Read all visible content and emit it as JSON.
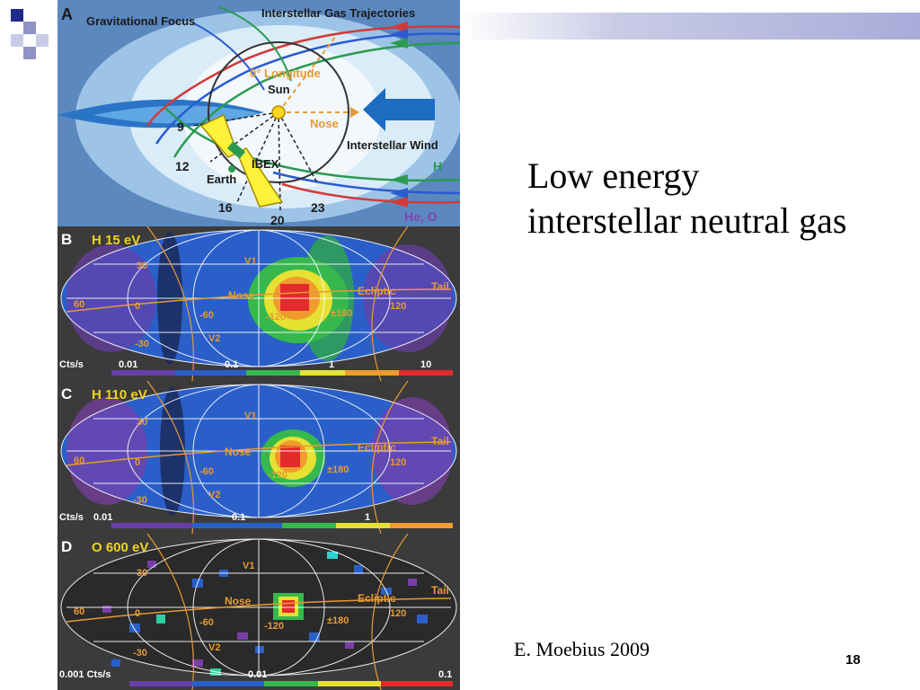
{
  "slide": {
    "title_line1": "Low energy",
    "title_line2": "interstellar neutral gas",
    "credit": "E. Moebius 2009",
    "page_number": "18",
    "accent_color": "#1f2a8a"
  },
  "panel_a": {
    "label": "A",
    "gravitational_focus": "Gravitational Focus",
    "trajectories": "Interstellar Gas Trajectories",
    "longitude": "0° Longitude",
    "sun": "Sun",
    "nose": "Nose",
    "wind": "Interstellar Wind",
    "ibex": "IBEX",
    "earth": "Earth",
    "h": "H",
    "heo": "He, O",
    "month_9": "9",
    "month_12": "12",
    "month_16": "16",
    "month_20": "20",
    "month_23": "23"
  },
  "maps": [
    {
      "label": "B",
      "name": "H 15 eV",
      "v1": "V1",
      "v2": "V2",
      "nose": "Nose",
      "ecliptic": "Ecliptic",
      "tail": "Tail",
      "lat_30": "30",
      "lat_m30": "-30",
      "lon_60": "60",
      "lon_0": "0",
      "lon_m60": "-60",
      "lon_m120": "-120",
      "lon_pm180": "±180",
      "lon_120": "120",
      "scale_unit": "Cts/s",
      "scale_ticks": [
        "0.01",
        "0.1",
        "1",
        "10"
      ]
    },
    {
      "label": "C",
      "name": "H 110 eV",
      "v1": "V1",
      "v2": "V2",
      "nose": "Nose",
      "ecliptic": "Ecliptic",
      "tail": "Tail",
      "lat_30": "30",
      "lat_m30": "-30",
      "lon_60": "60",
      "lon_0": "0",
      "lon_m60": "-60",
      "lon_m120": "-120",
      "lon_pm180": "±180",
      "lon_120": "120",
      "scale_unit": "Cts/s",
      "scale_ticks": [
        "0.01",
        "0.1",
        "1"
      ]
    },
    {
      "label": "D",
      "name": "O 600 eV",
      "v1": "V1",
      "v2": "V2",
      "nose": "Nose",
      "ecliptic": "Ecliptic",
      "tail": "Tail",
      "lat_30": "30",
      "lat_m30": "-30",
      "lon_60": "60",
      "lon_0": "0",
      "lon_m60": "-60",
      "lon_m120": "-120",
      "lon_pm180": "±180",
      "lon_120": "120",
      "scale_unit": "0.001 Cts/s",
      "scale_ticks": [
        "0.01",
        "0.1"
      ]
    }
  ]
}
